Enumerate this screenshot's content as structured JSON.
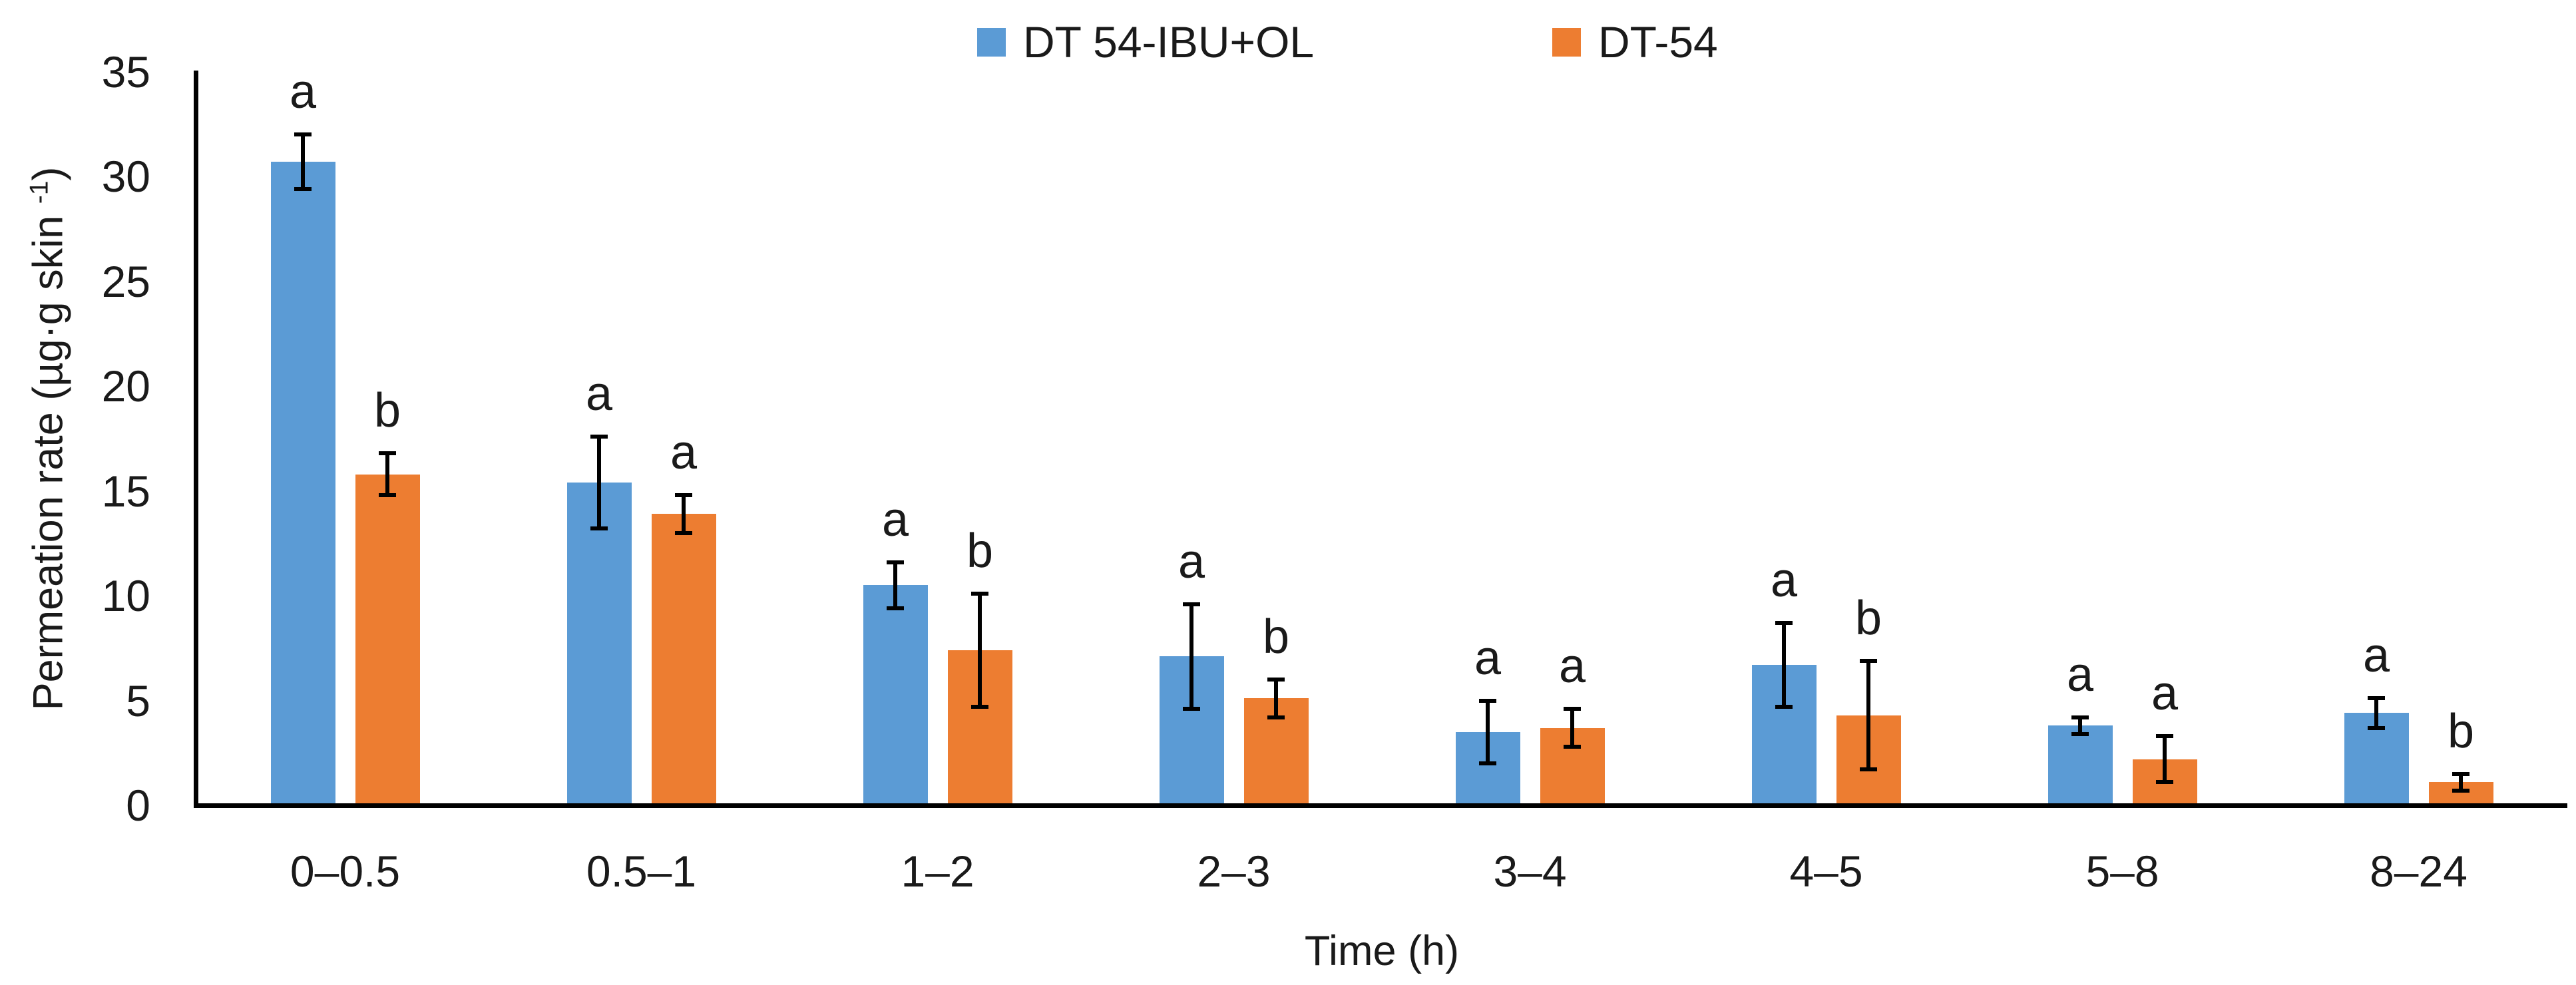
{
  "chart_data": {
    "type": "bar",
    "title": "",
    "xlabel": "Time (h)",
    "ylabel": "Permeation rate (µg·g skin ⁻¹)",
    "ylabel_parts": {
      "main": "Permeation rate (µg·g skin ",
      "sup": "-1",
      "close": ")"
    },
    "ylim": [
      0,
      35
    ],
    "y_ticks": [
      0,
      5,
      10,
      15,
      20,
      25,
      30,
      35
    ],
    "grid": false,
    "legend_position": "top-center",
    "error_bars": true,
    "categories": [
      "0–0.5",
      "0.5–1",
      "1–2",
      "2–3",
      "3–4",
      "4–5",
      "5–8",
      "8–24"
    ],
    "series": [
      {
        "name": "DT 54-IBU+OL",
        "color": "#5B9BD5",
        "values": [
          30.7,
          15.4,
          10.5,
          7.1,
          3.5,
          6.7,
          3.8,
          4.4
        ],
        "errors": [
          1.3,
          2.2,
          1.1,
          2.5,
          1.5,
          2.0,
          0.4,
          0.7
        ],
        "sig_letters": [
          "a",
          "a",
          "a",
          "a",
          "a",
          "a",
          "a",
          "a"
        ]
      },
      {
        "name": "DT-54",
        "color": "#ED7D31",
        "values": [
          15.8,
          13.9,
          7.4,
          5.1,
          3.7,
          4.3,
          2.2,
          1.1
        ],
        "errors": [
          1.0,
          0.9,
          2.7,
          0.9,
          0.9,
          2.6,
          1.1,
          0.4
        ],
        "sig_letters": [
          "b",
          "a",
          "b",
          "b",
          "a",
          "b",
          "a",
          "b"
        ]
      }
    ],
    "colors": {
      "axis": "#000000",
      "text": "#1a1a1a",
      "background": "#ffffff"
    }
  }
}
